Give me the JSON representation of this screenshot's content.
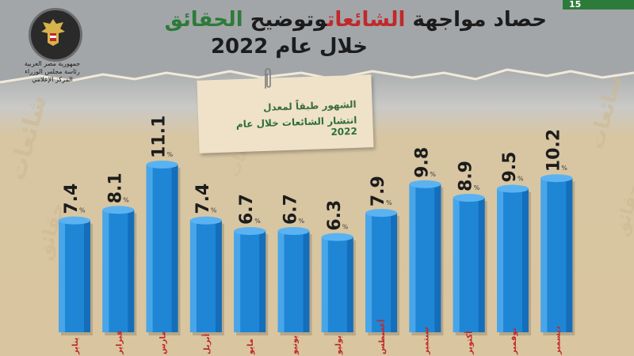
{
  "header": {
    "page_number": "15",
    "title_part1": "حصاد مواجهة",
    "title_part2": "الشائعات",
    "title_part3": "وتوضيح",
    "title_part4": "الحقائق",
    "title_line2": "خلال عام 2022"
  },
  "seal": {
    "caption1": "جمهورية مصر العربية",
    "caption2": "رئاسة مجلس الوزراء",
    "caption3": "المركز الإعلامي"
  },
  "note": {
    "line1": "الشهور طبقاً لمعدل",
    "line2": "انتشار الشائعات خلال عام 2022"
  },
  "watermark": {
    "words": [
      "شائعات",
      "حقائق",
      "شائعات",
      "حقائق",
      "شائعات"
    ]
  },
  "colors": {
    "bar": "#1f86d6",
    "bar_dark": "#0f5fa6",
    "bar_highlight": "#5ab3f0",
    "label": "#1c1c1c",
    "percent": "#3a3a3a",
    "month_label": "#c0292b",
    "accent_green": "#2c7b3a"
  },
  "chart_data": {
    "type": "bar",
    "categories": [
      "يناير",
      "فبراير",
      "مارس",
      "أبريل",
      "مايو",
      "يونيو",
      "يوليو",
      "أغسطس",
      "سبتمبر",
      "أكتوبر",
      "نوفمبر",
      "ديسمبر"
    ],
    "values": [
      7.4,
      8.1,
      11.1,
      7.4,
      6.7,
      6.7,
      6.3,
      7.9,
      9.8,
      8.9,
      9.5,
      10.2
    ],
    "value_suffix": "%",
    "ylim": [
      0,
      12
    ],
    "grid": false,
    "legend": "none"
  }
}
